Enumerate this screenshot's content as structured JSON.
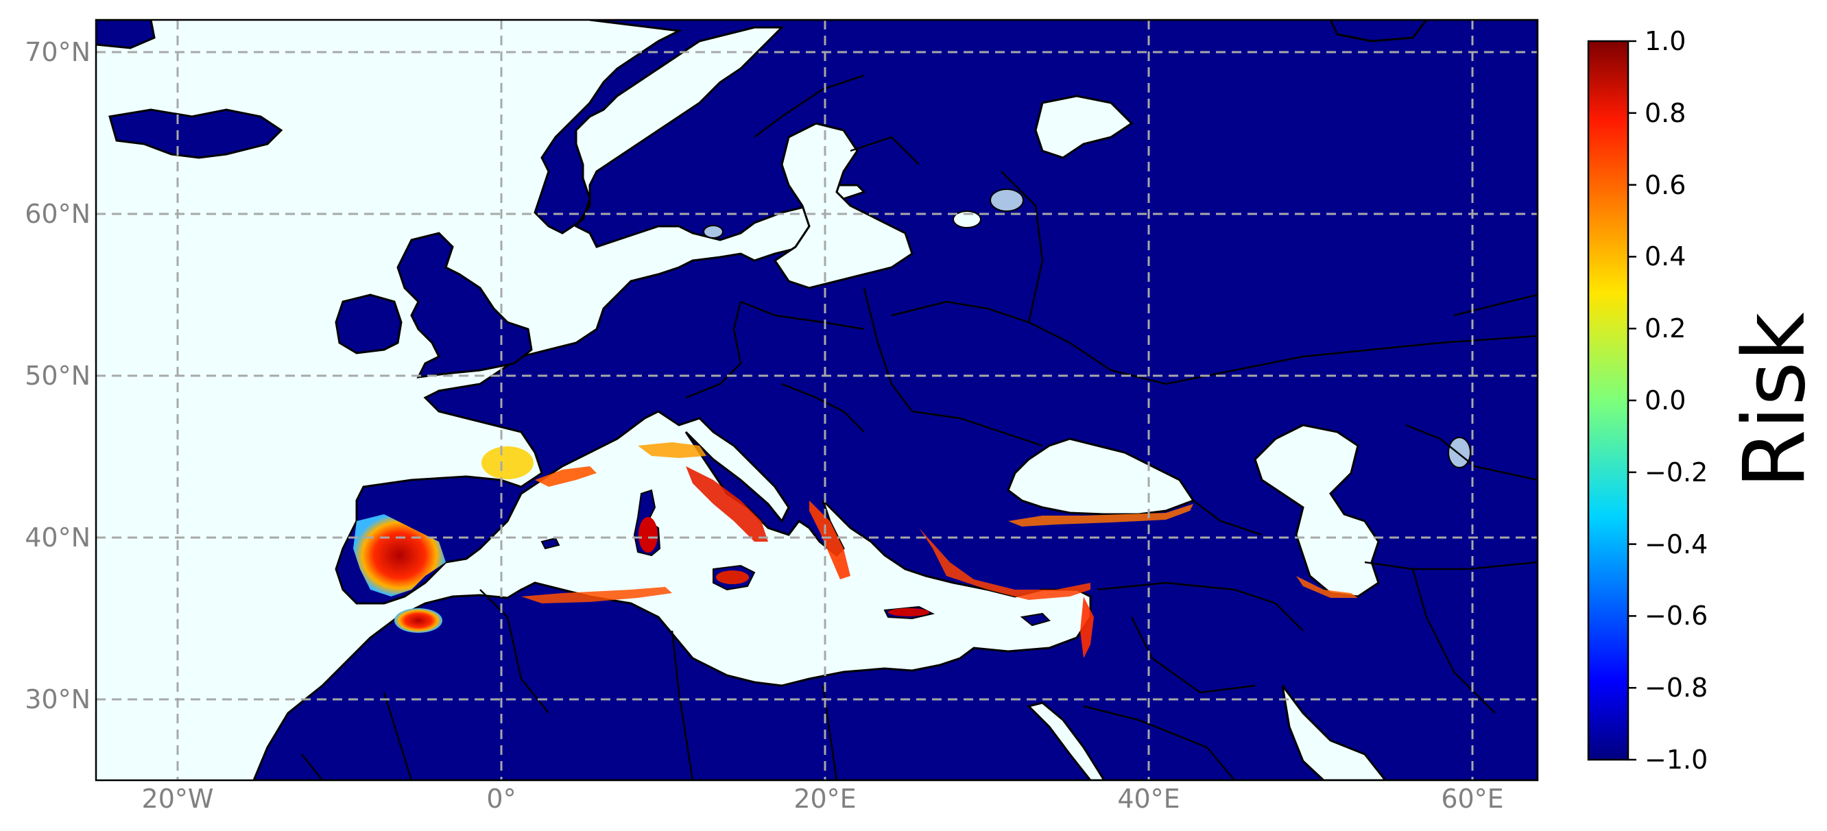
{
  "map": {
    "lat_labels": [
      "70°N",
      "60°N",
      "50°N",
      "40°N",
      "30°N"
    ],
    "lon_labels": [
      "20°W",
      "0°",
      "20°E",
      "40°E",
      "60°E"
    ],
    "extent": {
      "lon_min": -25,
      "lon_max": 64,
      "lat_min": 25,
      "lat_max": 72
    },
    "gridline_style": "dashed grey",
    "ocean_color": "#f0ffff",
    "land_color": "#00008b",
    "lake_color": "#a9c4e4"
  },
  "colorbar": {
    "label": "Risk",
    "colormap": "jet",
    "ticks": [
      "1.0",
      "0.8",
      "0.6",
      "0.4",
      "0.2",
      "0.0",
      "−0.2",
      "−0.4",
      "−0.6",
      "−0.8",
      "−1.0"
    ],
    "range": [
      -1.0,
      1.0
    ]
  }
}
